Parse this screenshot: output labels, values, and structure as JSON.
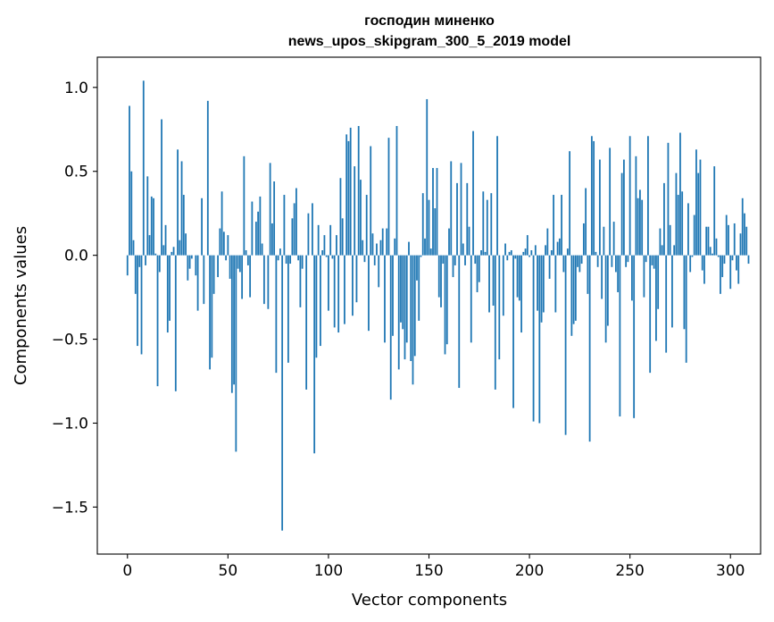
{
  "chart_data": {
    "type": "bar",
    "title_line1": "господин миненко",
    "title_line2": "news_upos_skipgram_300_5_2019 model",
    "xlabel": "Vector components",
    "ylabel": "Components values",
    "xlim": [
      -15,
      315
    ],
    "ylim": [
      -1.78,
      1.18
    ],
    "xticks": [
      0,
      50,
      100,
      150,
      200,
      250,
      300
    ],
    "yticks": [
      -1.5,
      -1.0,
      -0.5,
      0.0,
      0.5,
      1.0
    ],
    "ytick_labels": [
      "−1.5",
      "−1.0",
      "−0.5",
      "0.0",
      "0.5",
      "1.0"
    ],
    "bar_color": "#1f77b4",
    "values": [
      -0.12,
      0.89,
      0.5,
      0.09,
      -0.23,
      -0.54,
      -0.07,
      -0.59,
      1.04,
      -0.06,
      0.47,
      0.12,
      0.35,
      0.34,
      0.01,
      -0.78,
      -0.1,
      0.81,
      0.06,
      0.18,
      -0.46,
      -0.39,
      0.02,
      0.05,
      -0.81,
      0.63,
      0.09,
      0.56,
      0.36,
      0.13,
      -0.15,
      -0.08,
      -0.02,
      0.0,
      -0.12,
      -0.33,
      0.0,
      0.34,
      -0.29,
      0.0,
      0.92,
      -0.68,
      -0.61,
      -0.23,
      0.0,
      -0.13,
      0.16,
      0.38,
      0.14,
      -0.03,
      0.12,
      -0.14,
      -0.82,
      -0.77,
      -1.17,
      -0.08,
      -0.1,
      -0.26,
      0.59,
      0.03,
      -0.06,
      -0.25,
      0.32,
      0.0,
      0.2,
      0.26,
      0.35,
      0.07,
      -0.29,
      0.0,
      -0.32,
      0.55,
      0.19,
      0.44,
      -0.7,
      -0.03,
      0.04,
      -1.64,
      0.36,
      -0.05,
      -0.64,
      -0.05,
      0.22,
      0.31,
      0.4,
      -0.03,
      -0.31,
      -0.08,
      0.0,
      -0.8,
      0.25,
      0.0,
      0.31,
      -1.18,
      -0.61,
      0.18,
      -0.54,
      0.03,
      0.12,
      -0.01,
      -0.33,
      0.18,
      -0.02,
      -0.43,
      0.12,
      -0.46,
      0.46,
      0.22,
      -0.41,
      0.72,
      0.68,
      0.76,
      -0.36,
      0.53,
      -0.28,
      0.77,
      0.45,
      0.09,
      -0.04,
      0.36,
      -0.45,
      0.65,
      0.13,
      -0.06,
      0.07,
      -0.19,
      0.09,
      0.16,
      -0.52,
      0.16,
      0.7,
      -0.86,
      -0.48,
      0.1,
      0.77,
      -0.68,
      -0.4,
      -0.44,
      -0.62,
      -0.52,
      0.08,
      -0.63,
      -0.77,
      -0.6,
      -0.15,
      -0.39,
      -0.01,
      0.37,
      0.1,
      0.93,
      0.33,
      0.04,
      0.52,
      0.28,
      0.52,
      -0.25,
      -0.31,
      -0.05,
      -0.59,
      -0.53,
      0.16,
      0.56,
      -0.13,
      -0.06,
      0.43,
      -0.79,
      0.55,
      0.07,
      -0.06,
      0.43,
      0.17,
      -0.52,
      0.74,
      -0.05,
      -0.22,
      -0.16,
      0.03,
      0.38,
      0.02,
      0.33,
      -0.34,
      0.37,
      -0.3,
      -0.8,
      0.71,
      -0.62,
      0.0,
      -0.36,
      0.07,
      -0.03,
      0.02,
      0.03,
      -0.91,
      -0.02,
      -0.25,
      -0.27,
      -0.46,
      0.02,
      0.04,
      0.12,
      -0.01,
      0.03,
      -0.99,
      0.06,
      -0.33,
      -1.0,
      -0.4,
      -0.34,
      0.06,
      0.16,
      -0.14,
      0.03,
      0.36,
      -0.34,
      0.08,
      0.1,
      0.36,
      -0.1,
      -1.07,
      0.04,
      0.62,
      -0.48,
      -0.41,
      -0.39,
      -0.07,
      -0.1,
      -0.05,
      0.19,
      0.4,
      -0.23,
      -1.11,
      0.71,
      0.68,
      0.02,
      -0.07,
      0.57,
      -0.26,
      0.17,
      -0.52,
      -0.42,
      0.64,
      -0.07,
      0.2,
      -0.1,
      -0.22,
      -0.96,
      0.49,
      0.57,
      -0.07,
      -0.04,
      0.71,
      -0.27,
      -0.97,
      0.59,
      0.34,
      0.39,
      0.33,
      -0.25,
      -0.04,
      0.71,
      -0.7,
      -0.06,
      -0.08,
      -0.51,
      -0.32,
      0.16,
      0.06,
      0.43,
      -0.58,
      0.67,
      0.18,
      -0.43,
      0.06,
      0.49,
      0.36,
      0.73,
      0.38,
      -0.44,
      -0.64,
      0.31,
      -0.1,
      -0.01,
      0.24,
      0.63,
      0.49,
      0.57,
      -0.09,
      -0.17,
      0.17,
      0.17,
      0.05,
      0.01,
      0.53,
      0.1,
      -0.01,
      -0.23,
      -0.13,
      -0.05,
      0.24,
      0.18,
      -0.2,
      -0.03,
      0.19,
      -0.09,
      -0.17,
      0.13,
      0.34,
      0.25,
      0.17,
      -0.05
    ]
  }
}
